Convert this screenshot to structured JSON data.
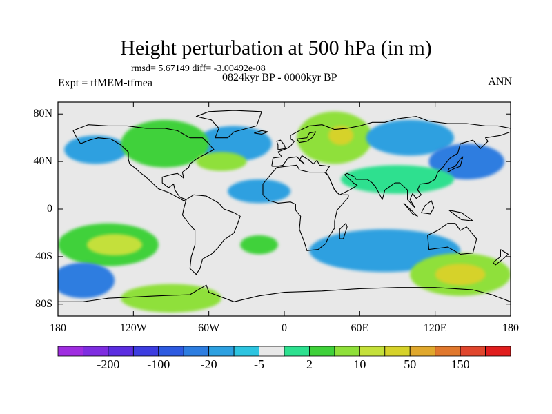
{
  "title": "Height perturbation at 500 hPa (in m)",
  "stats_line": "rmsd= 5.67149 diff= -3.00492e-08",
  "experiment_line": "Expt = tfMEM-tfmea",
  "period_line": "0824kyr BP - 0000kyr BP",
  "season": "ANN",
  "map": {
    "projection": "cylindrical-equidistant",
    "lon_range": [
      -180,
      180
    ],
    "lat_range": [
      -90,
      90
    ],
    "lat_ticks": [
      {
        "value": 80,
        "label": "80N"
      },
      {
        "value": 40,
        "label": "40N"
      },
      {
        "value": 0,
        "label": "0"
      },
      {
        "value": -40,
        "label": "40S"
      },
      {
        "value": -80,
        "label": "80S"
      }
    ],
    "lon_ticks": [
      {
        "value": -180,
        "label": "180"
      },
      {
        "value": -120,
        "label": "120W"
      },
      {
        "value": -60,
        "label": "60W"
      },
      {
        "value": 0,
        "label": "0"
      },
      {
        "value": 60,
        "label": "60E"
      },
      {
        "value": 120,
        "label": "120E"
      },
      {
        "value": 180,
        "label": "180"
      }
    ],
    "features": [
      {
        "name": "n-atlantic-low",
        "lon": -40,
        "lat": 55,
        "rx": 30,
        "ry": 15,
        "level": 6
      },
      {
        "name": "n-pacific-low",
        "lon": -150,
        "lat": 50,
        "rx": 25,
        "ry": 12,
        "level": 6
      },
      {
        "name": "n-america-high",
        "lon": -95,
        "lat": 55,
        "rx": 35,
        "ry": 20,
        "level": 10
      },
      {
        "name": "east-us-high",
        "lon": -50,
        "lat": 40,
        "rx": 20,
        "ry": 8,
        "level": 11
      },
      {
        "name": "europe-high",
        "lon": 40,
        "lat": 60,
        "rx": 30,
        "ry": 22,
        "level": 11
      },
      {
        "name": "europe-core",
        "lon": 45,
        "lat": 62,
        "rx": 10,
        "ry": 8,
        "level": 13
      },
      {
        "name": "siberia-low",
        "lon": 100,
        "lat": 60,
        "rx": 35,
        "ry": 15,
        "level": 6
      },
      {
        "name": "nw-pacific-low",
        "lon": 145,
        "lat": 40,
        "rx": 30,
        "ry": 15,
        "level": 5
      },
      {
        "name": "asia-high",
        "lon": 90,
        "lat": 25,
        "rx": 45,
        "ry": 12,
        "level": 9
      },
      {
        "name": "atlantic-low",
        "lon": -20,
        "lat": 15,
        "rx": 25,
        "ry": 10,
        "level": 6
      },
      {
        "name": "s-pacific-high",
        "lon": -140,
        "lat": -30,
        "rx": 40,
        "ry": 18,
        "level": 10
      },
      {
        "name": "s-pacific-core",
        "lon": -135,
        "lat": -30,
        "rx": 22,
        "ry": 9,
        "level": 12
      },
      {
        "name": "s-atlantic-high",
        "lon": -20,
        "lat": -30,
        "rx": 15,
        "ry": 8,
        "level": 10
      },
      {
        "name": "indian-ocean-low",
        "lon": 80,
        "lat": -35,
        "rx": 60,
        "ry": 18,
        "level": 6
      },
      {
        "name": "s-indian-high",
        "lon": 140,
        "lat": -55,
        "rx": 40,
        "ry": 18,
        "level": 11
      },
      {
        "name": "s-indian-core",
        "lon": 140,
        "lat": -55,
        "rx": 20,
        "ry": 9,
        "level": 13
      },
      {
        "name": "antarctic-high",
        "lon": -90,
        "lat": -75,
        "rx": 40,
        "ry": 12,
        "level": 11
      },
      {
        "name": "sw-pacific-low",
        "lon": -160,
        "lat": -60,
        "rx": 25,
        "ry": 15,
        "level": 5
      }
    ]
  },
  "colorbar": {
    "colors": [
      "#9f2de0",
      "#7e2de0",
      "#5b2de0",
      "#3d3de0",
      "#2d5ae0",
      "#2d7de0",
      "#2da0e0",
      "#2dc4e0",
      "#e8e8e8",
      "#2de08f",
      "#3fd13a",
      "#8fe03a",
      "#c4e03a",
      "#d6d22a",
      "#e0a82d",
      "#e0782d",
      "#e0462d",
      "#e01e1e"
    ],
    "labels": [
      {
        "after_box": 2,
        "text": "-200"
      },
      {
        "after_box": 4,
        "text": "-100"
      },
      {
        "after_box": 6,
        "text": "-20"
      },
      {
        "after_box": 8,
        "text": "-5"
      },
      {
        "after_box": 10,
        "text": "2"
      },
      {
        "after_box": 12,
        "text": "10"
      },
      {
        "after_box": 14,
        "text": "50"
      },
      {
        "after_box": 16,
        "text": "150"
      }
    ]
  }
}
